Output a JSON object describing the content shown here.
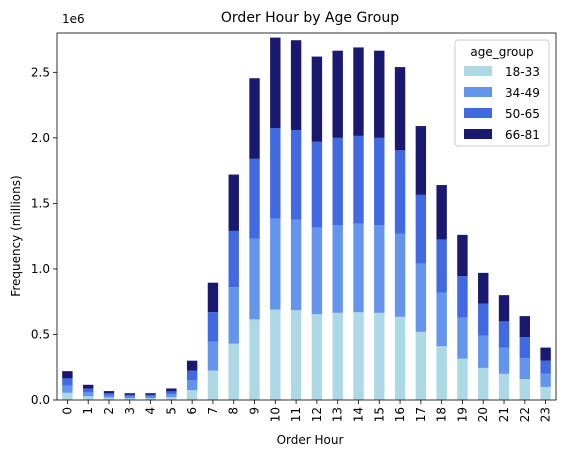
{
  "chart_data": {
    "type": "bar",
    "stacked": true,
    "title": "Order Hour by Age Group",
    "xlabel": "Order Hour",
    "ylabel": "Frequency (millions)",
    "y_offset_label": "1e6",
    "categories": [
      "0",
      "1",
      "2",
      "3",
      "4",
      "5",
      "6",
      "7",
      "8",
      "9",
      "10",
      "11",
      "12",
      "13",
      "14",
      "15",
      "16",
      "17",
      "18",
      "19",
      "20",
      "21",
      "22",
      "23"
    ],
    "ylim": [
      0,
      2800000
    ],
    "yticks": [
      0,
      500000,
      1000000,
      1500000,
      2000000,
      2500000
    ],
    "ytick_labels": [
      "0.0",
      "0.5",
      "1.0",
      "1.5",
      "2.0",
      "2.5"
    ],
    "legend_title": "age_group",
    "legend_position": "top-right",
    "grid": false,
    "series": [
      {
        "name": "18-33",
        "color": "#add8e6",
        "values": [
          55000,
          29000,
          17000,
          13000,
          13000,
          22000,
          75000,
          225000,
          430000,
          615000,
          690000,
          685000,
          655000,
          665000,
          670000,
          665000,
          635000,
          520000,
          410000,
          315000,
          245000,
          200000,
          160000,
          100000
        ]
      },
      {
        "name": "34-49",
        "color": "#6495ed",
        "values": [
          55000,
          29000,
          17000,
          13000,
          13000,
          22000,
          75000,
          220000,
          430000,
          615000,
          695000,
          690000,
          660000,
          670000,
          675000,
          670000,
          635000,
          520000,
          410000,
          315000,
          245000,
          200000,
          160000,
          100000
        ]
      },
      {
        "name": "50-65",
        "color": "#4169e1",
        "values": [
          55000,
          29000,
          17000,
          13000,
          13000,
          22000,
          75000,
          225000,
          430000,
          610000,
          690000,
          685000,
          655000,
          665000,
          670000,
          665000,
          635000,
          525000,
          405000,
          315000,
          245000,
          200000,
          160000,
          100000
        ]
      },
      {
        "name": "66-81",
        "color": "#191970",
        "values": [
          55000,
          29000,
          17000,
          13000,
          13000,
          22000,
          75000,
          225000,
          430000,
          615000,
          690000,
          685000,
          650000,
          665000,
          675000,
          665000,
          635000,
          525000,
          415000,
          315000,
          235000,
          200000,
          160000,
          100000
        ]
      }
    ]
  }
}
